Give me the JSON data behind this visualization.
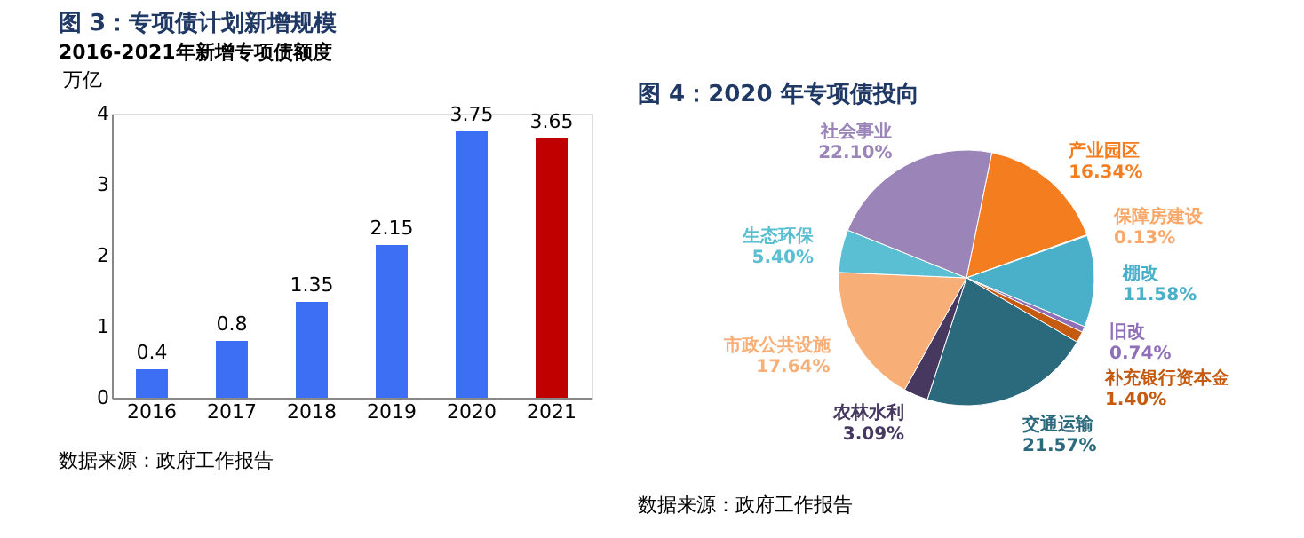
{
  "chart_data": [
    {
      "type": "bar",
      "title": "图 3：专项债计划新增规模",
      "subtitle": "2016-2021年新增专项债额度",
      "ylabel": "万亿",
      "categories": [
        "2016",
        "2017",
        "2018",
        "2019",
        "2020",
        "2021"
      ],
      "values": [
        0.4,
        0.8,
        1.35,
        2.15,
        3.75,
        3.65
      ],
      "colors": [
        "#3d6ff5",
        "#3d6ff5",
        "#3d6ff5",
        "#3d6ff5",
        "#3d6ff5",
        "#c00000"
      ],
      "ylim": [
        0,
        4
      ],
      "yticks": [
        0,
        1,
        2,
        3,
        4
      ],
      "data_labels": true,
      "grid": false,
      "annotations": [
        "数据来源：政府工作报告"
      ]
    },
    {
      "type": "pie",
      "title": "图 4：2020 年专项债投向",
      "categories": [
        "产业园区",
        "保障房建设",
        "棚改",
        "旧改",
        "补充银行资本金",
        "交通运输",
        "农林水利",
        "市政公共设施",
        "生态环保",
        "社会事业"
      ],
      "values": [
        16.34,
        0.13,
        11.58,
        0.74,
        1.4,
        21.57,
        3.09,
        17.64,
        5.4,
        22.1
      ],
      "colors": [
        "#f47d20",
        "#f9a86a",
        "#4aafc8",
        "#8f6fb8",
        "#c55a11",
        "#2b6a7c",
        "#46385e",
        "#f8ae77",
        "#5bbfd3",
        "#9a84b8"
      ],
      "value_labels": [
        "16.34%",
        "0.13%",
        "11.58%",
        "0.74%",
        "1.40%",
        "21.57%",
        "3.09%",
        "17.64%",
        "5.40%",
        "22.10%"
      ],
      "annotations": [
        "数据来源：政府工作报告"
      ]
    }
  ]
}
